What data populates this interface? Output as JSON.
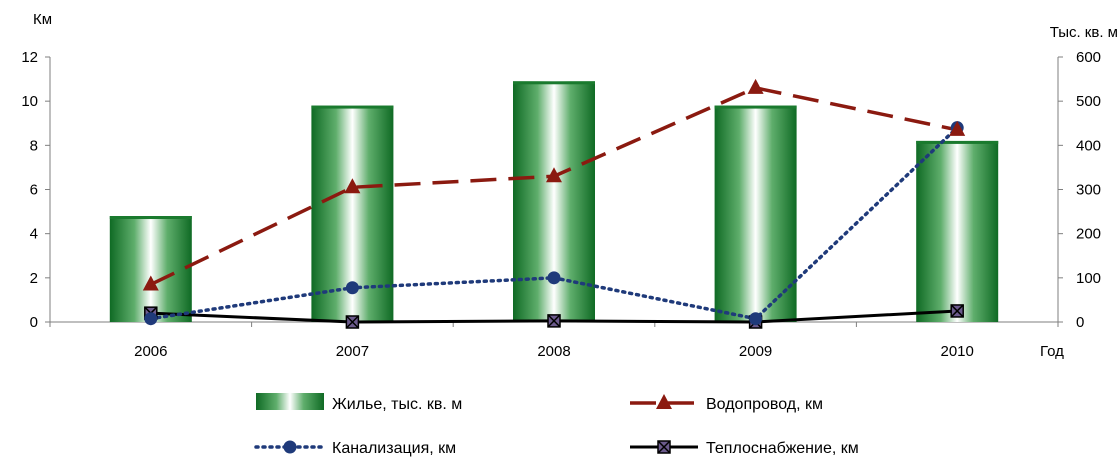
{
  "chart_data": {
    "type": "bar",
    "categories": [
      "2006",
      "2007",
      "2008",
      "2009",
      "2010"
    ],
    "x_label": "Год",
    "y_left": {
      "label": "Км",
      "ylim": [
        0,
        12
      ],
      "ticks": [
        "0",
        "2",
        "4",
        "6",
        "8",
        "10",
        "12"
      ]
    },
    "y_right": {
      "label": "Тыс. кв. м",
      "ylim": [
        0,
        600
      ],
      "ticks": [
        "0",
        "100",
        "200",
        "300",
        "400",
        "500",
        "600"
      ]
    },
    "series": [
      {
        "name": "Жилье, тыс. кв. м",
        "type": "bar",
        "axis": "right",
        "values": [
          240,
          490,
          545,
          490,
          410
        ],
        "color": "#1a7a2e"
      },
      {
        "name": "Водопровод, км",
        "type": "line",
        "axis": "left",
        "style": "dashed",
        "marker": "triangle",
        "values": [
          1.7,
          6.1,
          6.6,
          10.6,
          8.7
        ],
        "color": "#8b1a10"
      },
      {
        "name": "Канализация, км",
        "type": "line",
        "axis": "left",
        "style": "dotted",
        "marker": "circle",
        "values": [
          0.15,
          1.55,
          2.0,
          0.15,
          8.8
        ],
        "color": "#1f3a7a"
      },
      {
        "name": "Теплоснабжение, км",
        "type": "line",
        "axis": "left",
        "style": "solid",
        "marker": "square-x",
        "values": [
          0.4,
          0.0,
          0.05,
          0.0,
          0.5
        ],
        "color": "#000000"
      }
    ],
    "grid": false,
    "legend_position": "bottom"
  }
}
